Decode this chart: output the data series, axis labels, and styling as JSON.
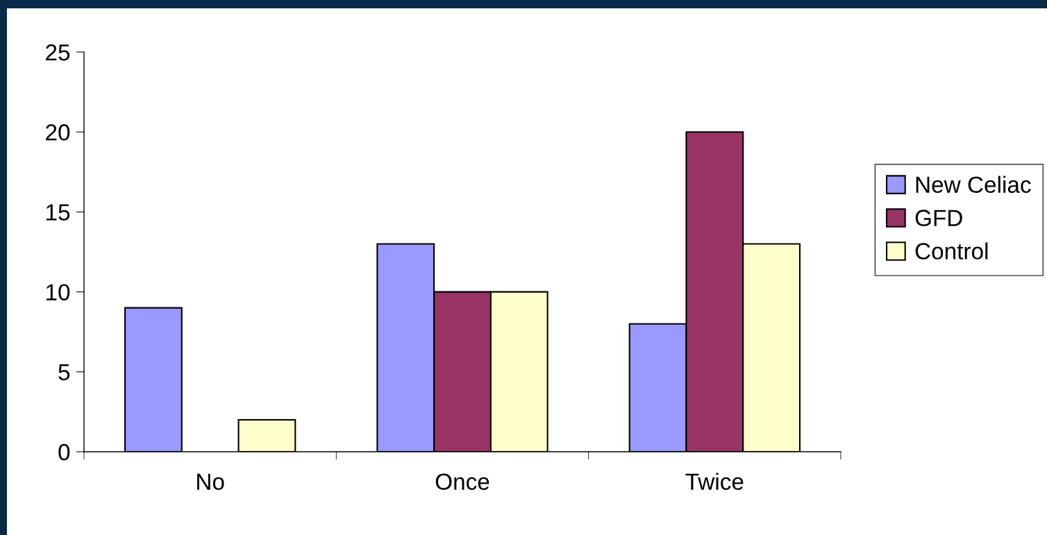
{
  "chart_data": {
    "type": "bar",
    "categories": [
      "No",
      "Once",
      "Twice"
    ],
    "series": [
      {
        "name": "New Celiac",
        "color": "#9999ff",
        "values": [
          9,
          13,
          8
        ]
      },
      {
        "name": "GFD",
        "color": "#993366",
        "values": [
          0,
          10,
          20
        ]
      },
      {
        "name": "Control",
        "color": "#ffffcc",
        "values": [
          2,
          10,
          13
        ]
      }
    ],
    "ylim": [
      0,
      25
    ],
    "yticks": [
      0,
      5,
      10,
      15,
      20,
      25
    ],
    "grid": false,
    "legend": "right"
  }
}
